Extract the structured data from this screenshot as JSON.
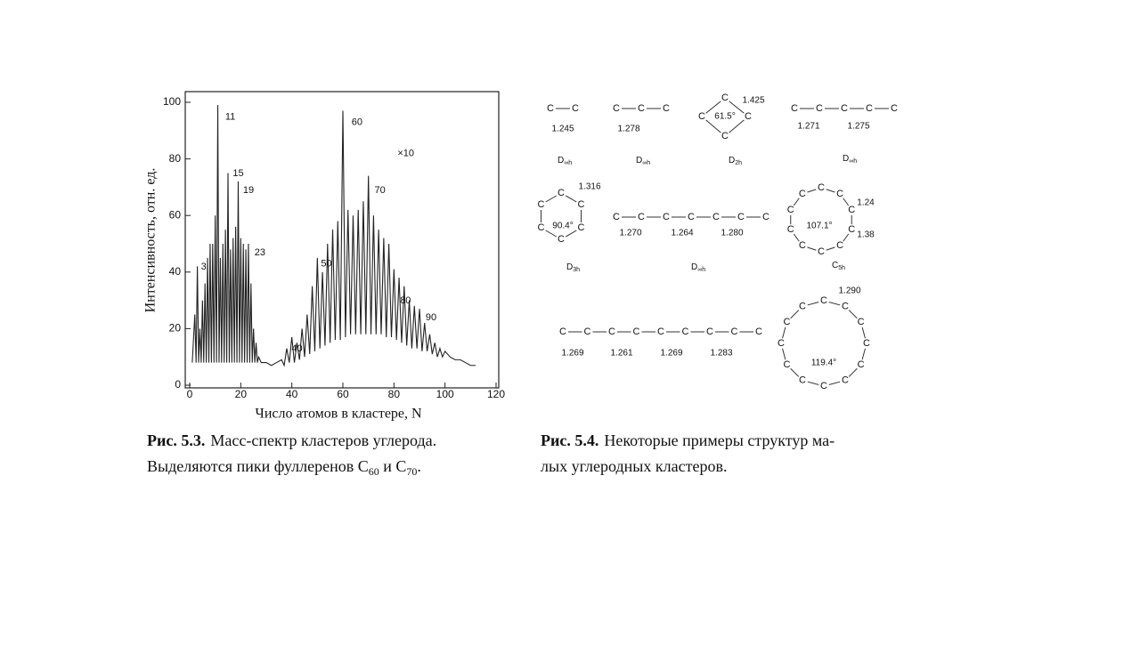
{
  "chart_data": {
    "type": "line",
    "ylabel": "Интенсивность, отн. ед.",
    "xlabel": "Число атомов в кластере, N",
    "xlim": [
      0,
      120
    ],
    "ylim": [
      0,
      100
    ],
    "xticks": [
      0,
      20,
      40,
      60,
      80,
      100,
      120
    ],
    "yticks": [
      0,
      20,
      40,
      60,
      80,
      100
    ],
    "series": [
      {
        "color": "#222222",
        "x": [
          1,
          2,
          2.5,
          3,
          3.5,
          4,
          4.5,
          5,
          5.5,
          6,
          6.5,
          7,
          7.5,
          8,
          8.5,
          9,
          9.5,
          10,
          10.5,
          11,
          11.5,
          12,
          12.5,
          13,
          13.5,
          14,
          14.5,
          15,
          15.5,
          16,
          16.5,
          17,
          17.5,
          18,
          18.5,
          19,
          19.5,
          20,
          20.5,
          21,
          21.5,
          22,
          22.5,
          23,
          23.5,
          24,
          24.5,
          25,
          25.5,
          26,
          26.5,
          27,
          28,
          30,
          32,
          34,
          36,
          37,
          38,
          39,
          40,
          41,
          42,
          43,
          44,
          45,
          46,
          47,
          48,
          49,
          50,
          51,
          52,
          53,
          54,
          55,
          56,
          57,
          58,
          59,
          60,
          61,
          62,
          63,
          64,
          65,
          66,
          67,
          68,
          69,
          70,
          71,
          72,
          73,
          74,
          75,
          76,
          77,
          78,
          79,
          80,
          81,
          82,
          83,
          84,
          85,
          86,
          87,
          88,
          89,
          90,
          91,
          92,
          93,
          94,
          95,
          96,
          97,
          98,
          99,
          100,
          102,
          104,
          106,
          108,
          110,
          112
        ],
        "values": [
          8,
          25,
          8,
          42,
          8,
          20,
          8,
          30,
          8,
          36,
          8,
          45,
          8,
          50,
          8,
          50,
          8,
          60,
          8,
          99,
          8,
          45,
          8,
          50,
          8,
          55,
          8,
          75,
          8,
          48,
          8,
          52,
          8,
          56,
          8,
          72,
          8,
          52,
          8,
          50,
          8,
          48,
          8,
          50,
          8,
          36,
          8,
          20,
          8,
          15,
          8,
          10,
          8,
          8,
          7,
          8,
          9,
          7,
          13,
          8,
          17,
          8,
          15,
          9,
          20,
          10,
          25,
          11,
          35,
          12,
          45,
          13,
          40,
          14,
          50,
          15,
          55,
          16,
          58,
          16,
          97,
          17,
          62,
          18,
          60,
          18,
          62,
          18,
          65,
          18,
          74,
          18,
          60,
          18,
          55,
          18,
          52,
          17,
          50,
          17,
          41,
          16,
          38,
          15,
          35,
          14,
          30,
          13,
          28,
          13,
          27,
          12,
          22,
          12,
          18,
          11,
          15,
          10,
          13,
          10,
          12,
          10,
          9,
          9,
          8,
          7,
          7
        ]
      }
    ],
    "annotations": [
      {
        "text": "3",
        "x": 3,
        "y": 45
      },
      {
        "text": "11",
        "x": 12.5,
        "y": 98
      },
      {
        "text": "15",
        "x": 15.5,
        "y": 78
      },
      {
        "text": "19",
        "x": 19.5,
        "y": 72
      },
      {
        "text": "23",
        "x": 24,
        "y": 50
      },
      {
        "text": "40",
        "x": 38.5,
        "y": 16
      },
      {
        "text": "50",
        "x": 50,
        "y": 46
      },
      {
        "text": "60",
        "x": 62,
        "y": 96
      },
      {
        "text": "70",
        "x": 71,
        "y": 72
      },
      {
        "text": "80",
        "x": 81,
        "y": 33
      },
      {
        "text": "90",
        "x": 91,
        "y": 27
      },
      {
        "text": "×10",
        "x": 80,
        "y": 85
      }
    ]
  },
  "caption1": {
    "label": "Рис. 5.3.",
    "line1": "Масс-спектр кластеров углерода.",
    "parts": [
      "Выделяются пики фуллеренов C",
      "60",
      " и C",
      "70",
      "."
    ]
  },
  "figure2": {
    "atom": "C",
    "molecules": [
      {
        "bonds": [
          "1.245"
        ],
        "symmetry": {
          "base": "D",
          "sub": "∞h"
        }
      },
      {
        "bonds": [
          "1.278"
        ],
        "symmetry": {
          "base": "D",
          "sub": "∞h"
        }
      },
      {
        "bonds": [
          "1.425"
        ],
        "angle": "61.5°",
        "symmetry": {
          "base": "D",
          "sub": "2h"
        }
      },
      {
        "bonds": [
          "1.271",
          "1.275"
        ],
        "symmetry": {
          "base": "D",
          "sub": "∞h"
        }
      },
      {
        "bonds": [
          "1.316"
        ],
        "angle": "90.4°",
        "symmetry": {
          "base": "D",
          "sub": "3h"
        }
      },
      {
        "bonds": [
          "1.270",
          "1.264",
          "1.280"
        ],
        "symmetry": {
          "base": "D",
          "sub": "∞h"
        }
      },
      {
        "bonds": [
          "1.24",
          "1.38"
        ],
        "angle": "107.1°",
        "symmetry": {
          "base": "C",
          "sub": "5h"
        }
      },
      {
        "bonds": [
          "1.269",
          "1.261",
          "1.269",
          "1.283"
        ]
      },
      {
        "bonds": [
          "1.290"
        ],
        "angle": "119.4°"
      }
    ]
  },
  "caption2": {
    "label": "Рис. 5.4.",
    "lines": [
      "Некоторые примеры структур ма-",
      "лых углеродных кластеров."
    ]
  }
}
